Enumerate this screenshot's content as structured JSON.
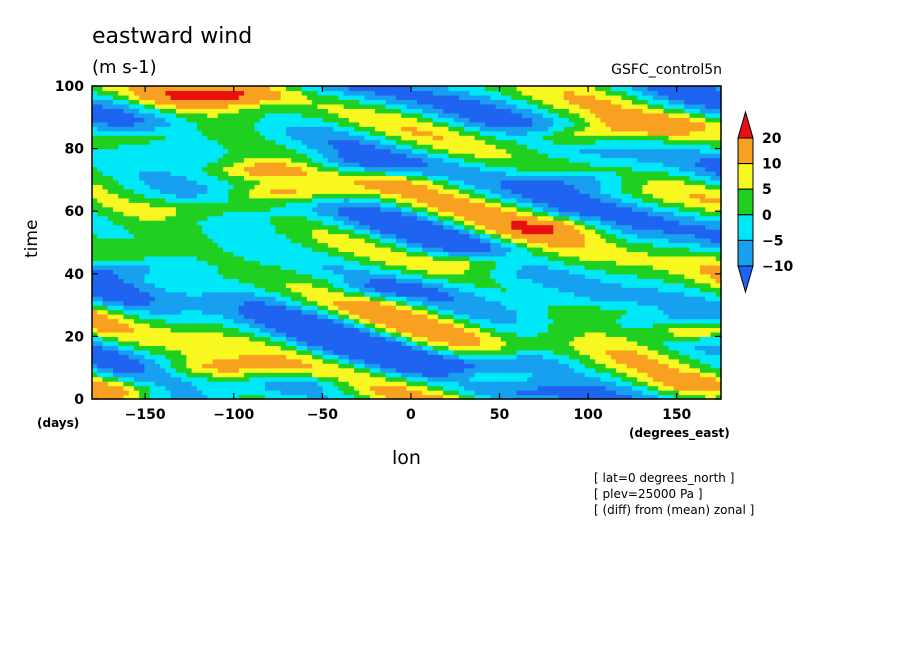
{
  "chart_data": {
    "type": "heatmap",
    "title": "eastward wind",
    "units": "(m s-1)",
    "dataset": "GSFC_control5n",
    "xlabel": "lon",
    "xunit": "(degrees_east)",
    "ylabel": "time",
    "yunit": "(days)",
    "xlim": [
      -180,
      175
    ],
    "ylim": [
      0,
      100
    ],
    "x_ticks": [
      -150,
      -100,
      -50,
      0,
      50,
      100,
      150
    ],
    "y_ticks": [
      0,
      20,
      40,
      60,
      80,
      100
    ],
    "x_tick_labels": [
      "−150",
      "−100",
      "−50",
      "0",
      "50",
      "100",
      "150"
    ],
    "y_tick_labels": [
      "0",
      "20",
      "40",
      "60",
      "80",
      "100"
    ],
    "grid": false,
    "colorbar": {
      "placement": "right",
      "labels": [
        "20",
        "10",
        "5",
        "0",
        "−5",
        "−10"
      ],
      "levels": [
        -10,
        -5,
        0,
        5,
        10,
        20
      ],
      "colors": [
        "#1e64f0",
        "#18a0f0",
        "#00e8f8",
        "#20d020",
        "#f8f820",
        "#f8a020",
        "#e81010"
      ],
      "extend": "both"
    },
    "features": [
      {
        "lon": -120,
        "time": 97,
        "value": 14
      },
      {
        "lon": -90,
        "time": 98,
        "value": 10
      },
      {
        "lon": -150,
        "time": 84,
        "value": 10
      },
      {
        "lon": 90,
        "time": 84,
        "value": 15
      },
      {
        "lon": 140,
        "time": 88,
        "value": 10
      },
      {
        "lon": -80,
        "time": 73,
        "value": 13
      },
      {
        "lon": -70,
        "time": 66,
        "value": 15
      },
      {
        "lon": 0,
        "time": 69,
        "value": 6
      },
      {
        "lon": 80,
        "time": 55,
        "value": 10
      },
      {
        "lon": 40,
        "time": 44,
        "value": 12
      },
      {
        "lon": -120,
        "time": 61,
        "value": 8
      },
      {
        "lon": 160,
        "time": 22,
        "value": 18
      },
      {
        "lon": 120,
        "time": 28,
        "value": 8
      },
      {
        "lon": -110,
        "time": 10,
        "value": 10
      },
      {
        "lon": 40,
        "time": 7,
        "value": 11
      },
      {
        "lon": -170,
        "time": 3,
        "value": 10
      },
      {
        "lon": 170,
        "time": 5,
        "value": 9
      },
      {
        "lon": -40,
        "time": 75,
        "value": -9
      },
      {
        "lon": 100,
        "time": 70,
        "value": -9
      },
      {
        "lon": -20,
        "time": 35,
        "value": -8
      },
      {
        "lon": 60,
        "time": 12,
        "value": -10
      },
      {
        "lon": -60,
        "time": 5,
        "value": -10
      },
      {
        "lon": -150,
        "time": 42,
        "value": -8
      }
    ]
  },
  "notes": [
    "[ lat=0 degrees_north ]",
    "[ plev=25000 Pa ]",
    "[ (diff) from (mean) zonal ]"
  ]
}
